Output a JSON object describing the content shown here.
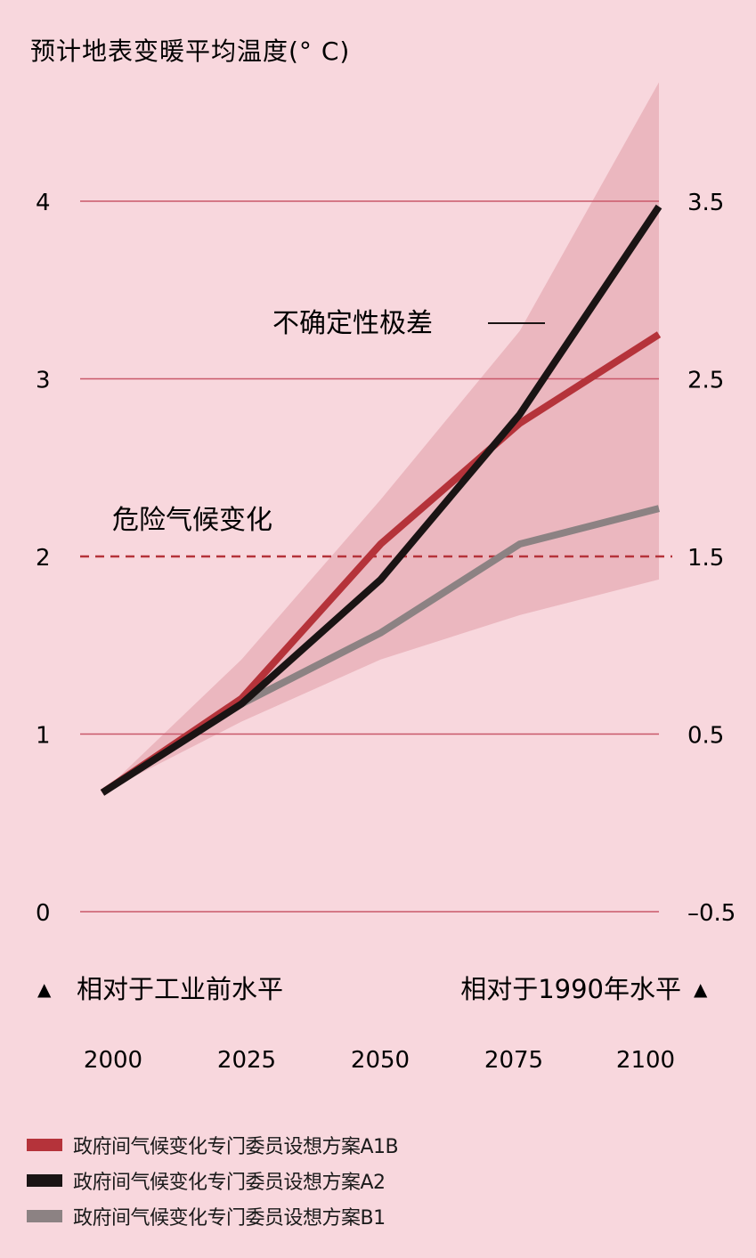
{
  "chart_data": {
    "type": "line",
    "title": "预计地表变暖平均温度(° C)",
    "x": [
      2000,
      2025,
      2050,
      2075,
      2100
    ],
    "x_tick_labels": [
      "2000",
      "2025",
      "2050",
      "2075",
      "2100"
    ],
    "left_axis": {
      "label": "相对于工业前水平",
      "ylim": [
        0,
        4
      ],
      "ticks": [
        0,
        1,
        2,
        3,
        4
      ],
      "tick_labels": [
        "0",
        "1",
        "2",
        "3",
        "4"
      ]
    },
    "right_axis": {
      "label": "相对于1990年水平",
      "ylim": [
        -0.5,
        3.5
      ],
      "ticks": [
        -0.5,
        0.5,
        1.5,
        2.5,
        3.5
      ],
      "tick_labels": [
        "–0.5",
        "0.5",
        "1.5",
        "2.5",
        "3.5"
      ]
    },
    "series": [
      {
        "name": "政府间气候变化专门委员设想方案A1B",
        "color": "#b5333a",
        "values": [
          0.67,
          1.2,
          2.07,
          2.75,
          3.25
        ]
      },
      {
        "name": "政府间气候变化专门委员设想方案A2",
        "color": "#1a1414",
        "values": [
          0.67,
          1.17,
          1.87,
          2.8,
          3.97
        ]
      },
      {
        "name": "政府间气候变化专门委员设想方案B1",
        "color": "#8c8283",
        "values": [
          0.67,
          1.17,
          1.57,
          2.07,
          2.27
        ]
      }
    ],
    "uncertainty_band": {
      "label": "不确定性极差",
      "color": "#ebb7bf",
      "upper": [
        0.67,
        1.42,
        2.32,
        3.27,
        4.67
      ],
      "lower": [
        0.67,
        1.07,
        1.42,
        1.67,
        1.87
      ]
    },
    "threshold": {
      "label": "危险气候变化",
      "value": 2,
      "color": "#b5333a",
      "style": "dashed"
    },
    "grid": true,
    "grid_color": "#c9586a",
    "legend_position": "bottom-left"
  }
}
